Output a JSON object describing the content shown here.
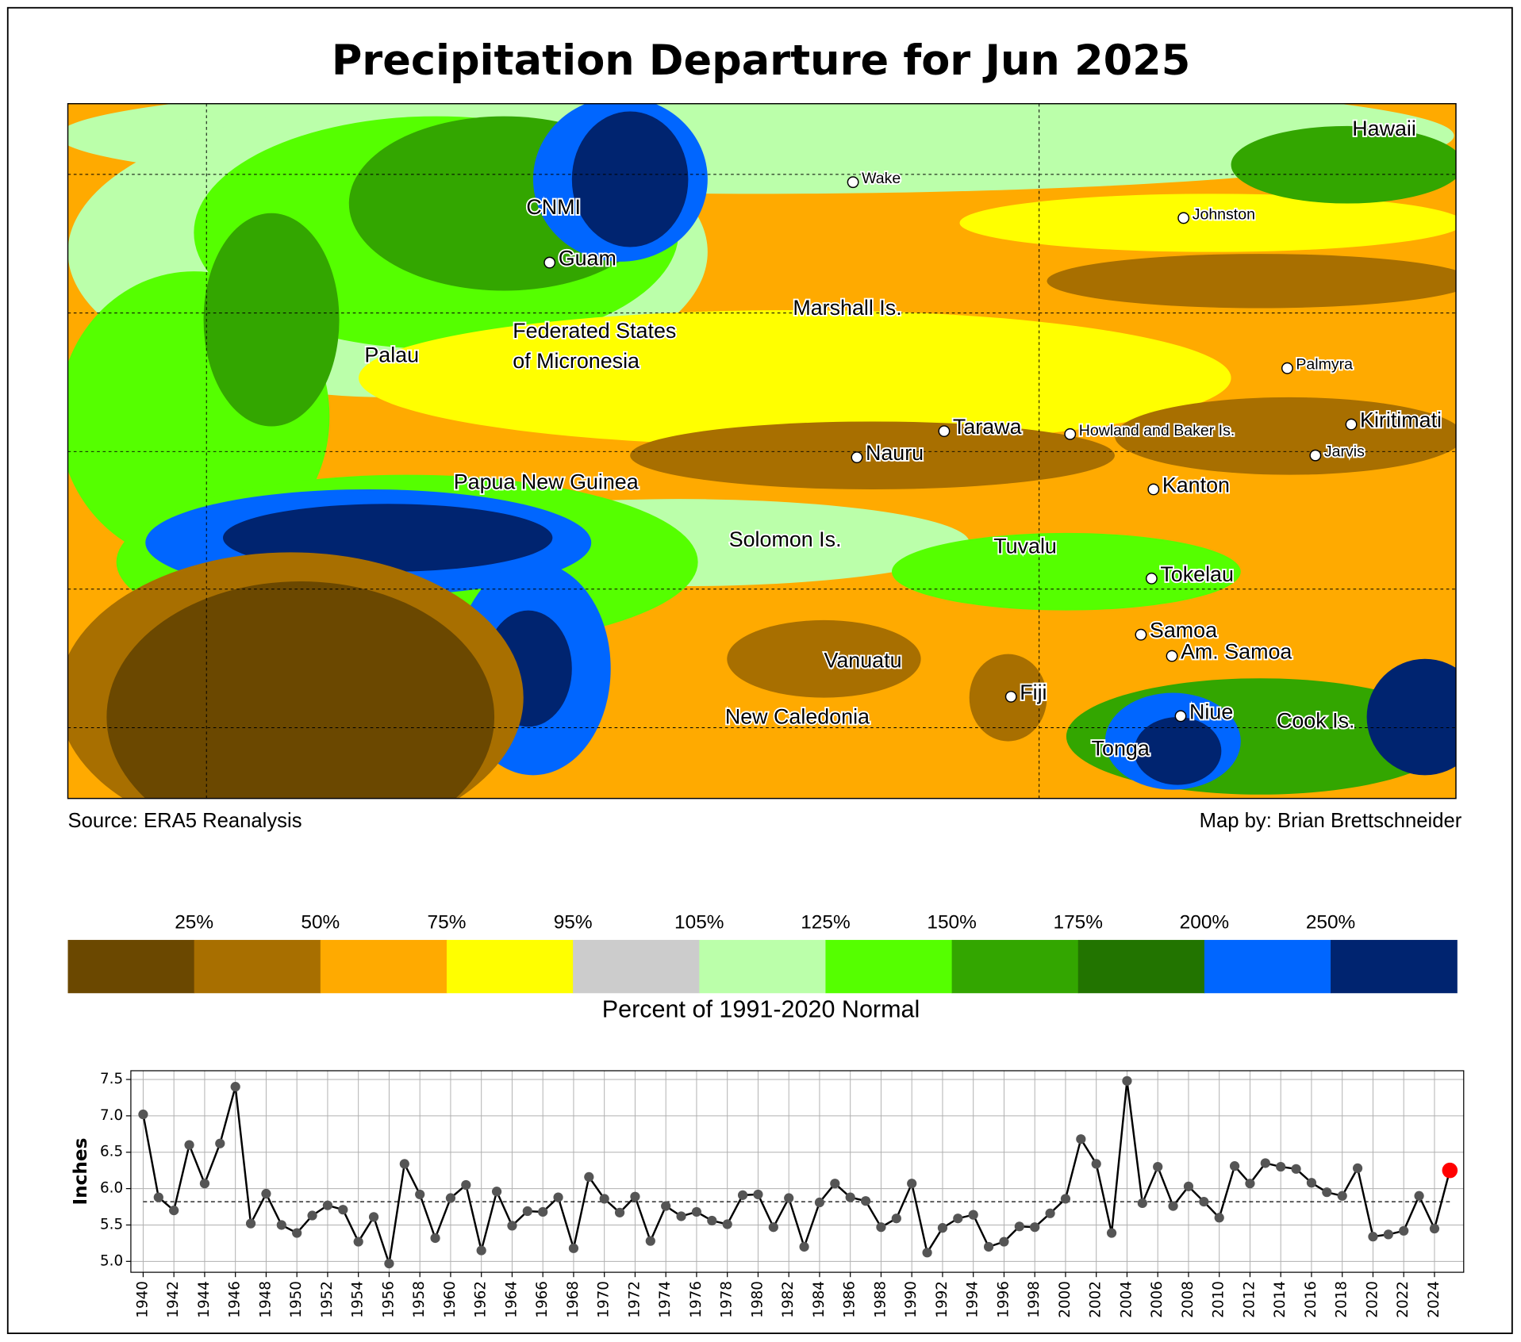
{
  "map": {
    "title": "Precipitation Departure for Jun 2025",
    "source": "Source: ERA5 Reanalysis",
    "credit": "Map by: Brian Brettschneider",
    "places": [
      {
        "name": "Hawaii"
      },
      {
        "name": "Wake"
      },
      {
        "name": "Johnston"
      },
      {
        "name": "CNMI"
      },
      {
        "name": "Guam"
      },
      {
        "name": "Marshall Is."
      },
      {
        "name": "Federated States"
      },
      {
        "name": "of Micronesia"
      },
      {
        "name": "Palau"
      },
      {
        "name": "Palmyra"
      },
      {
        "name": "Tarawa"
      },
      {
        "name": "Howland and Baker Is."
      },
      {
        "name": "Kiritimati"
      },
      {
        "name": "Nauru"
      },
      {
        "name": "Jarvis"
      },
      {
        "name": "Papua New Guinea"
      },
      {
        "name": "Kanton"
      },
      {
        "name": "Solomon Is."
      },
      {
        "name": "Tuvalu"
      },
      {
        "name": "Tokelau"
      },
      {
        "name": "Samoa"
      },
      {
        "name": "Am. Samoa"
      },
      {
        "name": "Vanuatu"
      },
      {
        "name": "Fiji"
      },
      {
        "name": "New Caledonia"
      },
      {
        "name": "Niue"
      },
      {
        "name": "Cook Is."
      },
      {
        "name": "Tonga"
      }
    ],
    "colorbar": {
      "label": "Percent of 1991-2020 Normal",
      "ticks": [
        "25%",
        "50%",
        "75%",
        "95%",
        "105%",
        "125%",
        "150%",
        "175%",
        "200%",
        "250%"
      ],
      "colors": [
        "#6b4800",
        "#a86f00",
        "#ffaa00",
        "#ffff00",
        "#cccccc",
        "#bbffaa",
        "#55ff00",
        "#33a600",
        "#227400",
        "#0066ff",
        "#002470"
      ]
    }
  },
  "chart_data": {
    "type": "line",
    "y_label": "Inches",
    "x": [
      1940,
      1941,
      1942,
      1943,
      1944,
      1945,
      1946,
      1947,
      1948,
      1949,
      1950,
      1951,
      1952,
      1953,
      1954,
      1955,
      1956,
      1957,
      1958,
      1959,
      1960,
      1961,
      1962,
      1963,
      1964,
      1965,
      1966,
      1967,
      1968,
      1969,
      1970,
      1971,
      1972,
      1973,
      1974,
      1975,
      1976,
      1977,
      1978,
      1979,
      1980,
      1981,
      1982,
      1983,
      1984,
      1985,
      1986,
      1987,
      1988,
      1989,
      1990,
      1991,
      1992,
      1993,
      1994,
      1995,
      1996,
      1997,
      1998,
      1999,
      2000,
      2001,
      2002,
      2003,
      2004,
      2005,
      2006,
      2007,
      2008,
      2009,
      2010,
      2011,
      2012,
      2013,
      2014,
      2015,
      2016,
      2017,
      2018,
      2019,
      2020,
      2021,
      2022,
      2023,
      2024,
      2025
    ],
    "values": [
      7.02,
      5.88,
      5.7,
      6.6,
      6.07,
      6.62,
      7.4,
      5.52,
      5.93,
      5.5,
      5.39,
      5.63,
      5.77,
      5.71,
      5.27,
      5.61,
      4.97,
      6.34,
      5.92,
      5.32,
      5.87,
      6.05,
      5.15,
      5.96,
      5.49,
      5.69,
      5.68,
      5.88,
      5.18,
      6.16,
      5.86,
      5.67,
      5.89,
      5.28,
      5.76,
      5.62,
      5.68,
      5.56,
      5.51,
      5.91,
      5.92,
      5.47,
      5.87,
      5.2,
      5.81,
      6.07,
      5.88,
      5.83,
      5.47,
      5.59,
      6.07,
      5.12,
      5.46,
      5.59,
      5.64,
      5.2,
      5.27,
      5.48,
      5.47,
      5.66,
      5.86,
      6.68,
      6.34,
      5.39,
      7.48,
      5.8,
      6.3,
      5.76,
      6.03,
      5.82,
      5.6,
      6.31,
      6.07,
      6.35,
      6.3,
      6.27,
      6.08,
      5.95,
      5.9,
      6.28,
      5.34,
      5.37,
      5.42,
      5.9,
      5.45,
      6.25
    ],
    "color": "#000000",
    "marker_color": "#555555",
    "highlight_color": "#ff0000",
    "reference_line": 5.82,
    "xlim": [
      1939.2,
      2025.9
    ],
    "ylim": [
      4.85,
      7.62
    ],
    "xticks": [
      1940,
      1942,
      1944,
      1946,
      1948,
      1950,
      1952,
      1954,
      1956,
      1958,
      1960,
      1962,
      1964,
      1966,
      1968,
      1970,
      1972,
      1974,
      1976,
      1978,
      1980,
      1982,
      1984,
      1986,
      1988,
      1990,
      1992,
      1994,
      1996,
      1998,
      2000,
      2002,
      2004,
      2006,
      2008,
      2010,
      2012,
      2014,
      2016,
      2018,
      2020,
      2022,
      2024
    ],
    "yticks": [
      {
        "value": 5,
        "label": "5.0"
      },
      5.5,
      {
        "value": 6,
        "label": "6.0"
      },
      6.5,
      {
        "value": 7,
        "label": "7.0"
      },
      7.5
    ],
    "grid": true
  }
}
